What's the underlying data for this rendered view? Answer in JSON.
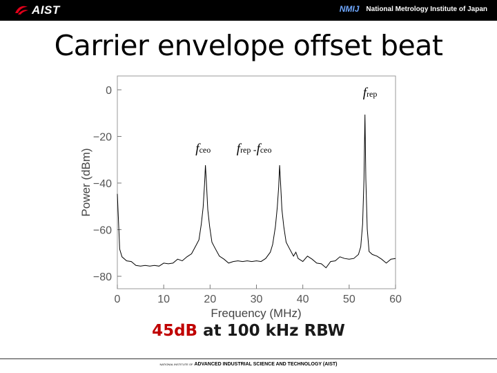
{
  "header": {
    "logo_text": "AIST",
    "institute_badge": "NMIJ",
    "institute_name": "National Metrology Institute of Japan"
  },
  "slide": {
    "title": "Carrier envelope offset beat",
    "caption_highlight": "45dB",
    "caption_rest": " at 100 kHz RBW"
  },
  "footer": {
    "prefix": "NATIONAL INSTITUTE OF",
    "name": "ADVANCED INDUSTRIAL SCIENCE AND TECHNOLOGY (AIST)"
  },
  "colors": {
    "caption_highlight": "#c00000",
    "trace": "#000000",
    "top_bar": "#000000"
  },
  "chart_data": {
    "type": "line",
    "xlabel": "Frequency (MHz)",
    "ylabel": "Power (dBm)",
    "xlim": [
      0,
      60
    ],
    "ylim": [
      -80,
      0
    ],
    "xticks": [
      0,
      10,
      20,
      30,
      40,
      50,
      60
    ],
    "yticks": [
      0,
      -20,
      -40,
      -60,
      -80
    ],
    "xtick_labels": [
      "0",
      "10",
      "20",
      "30",
      "40",
      "50",
      "60"
    ],
    "ytick_labels": [
      "0",
      "−20",
      "−40",
      "−60",
      "−80"
    ],
    "grid": false,
    "series": [
      {
        "x": [
          0,
          0.5,
          1,
          2,
          3,
          4,
          5,
          6,
          7,
          8,
          9,
          10,
          11,
          12,
          13,
          14,
          15,
          16,
          17,
          17.6,
          18.1,
          18.5,
          18.8,
          19.0,
          19.2,
          19.5,
          19.9,
          20.4,
          21,
          22,
          23,
          24,
          25,
          26,
          27,
          28,
          29,
          30,
          31,
          32,
          33,
          33.5,
          34.1,
          34.5,
          34.8,
          35.0,
          35.2,
          35.5,
          35.9,
          36.4,
          37,
          38,
          38.5,
          39,
          40,
          41,
          42,
          43,
          44,
          45,
          46,
          47,
          48,
          49,
          50,
          51,
          52,
          52.5,
          52.9,
          53.2,
          53.4,
          53.6,
          53.9,
          54.3,
          55,
          56,
          57,
          58,
          59,
          60
        ],
        "y": [
          -45,
          -68,
          -72,
          -73,
          -74,
          -75,
          -76,
          -75,
          -76,
          -75,
          -76,
          -74,
          -75,
          -74,
          -73,
          -73,
          -72,
          -70,
          -67,
          -64,
          -58,
          -50,
          -41,
          -32,
          -40,
          -51,
          -59,
          -65,
          -68,
          -71,
          -73,
          -74,
          -74,
          -73,
          -74,
          -73,
          -74,
          -73,
          -74,
          -72,
          -70,
          -66,
          -59,
          -50,
          -42,
          -32,
          -40,
          -51,
          -59,
          -65,
          -68,
          -71,
          -70,
          -72,
          -74,
          -71,
          -73,
          -74,
          -75,
          -76,
          -74,
          -73,
          -72,
          -72,
          -73,
          -72,
          -71,
          -67,
          -58,
          -38,
          -11,
          -38,
          -60,
          -69,
          -71,
          -71,
          -73,
          -74,
          -73,
          -72
        ]
      }
    ],
    "annotations": [
      {
        "base": "f",
        "sub": "rep",
        "at": [
          54.5,
          -3
        ]
      },
      {
        "base": "f",
        "sub": "ceo",
        "at": [
          18.5,
          -27
        ]
      },
      {
        "base": "f",
        "sub": "rep",
        "mid": " -",
        "base2": "f",
        "sub2": "ceo",
        "at": [
          29.5,
          -27
        ]
      }
    ]
  }
}
